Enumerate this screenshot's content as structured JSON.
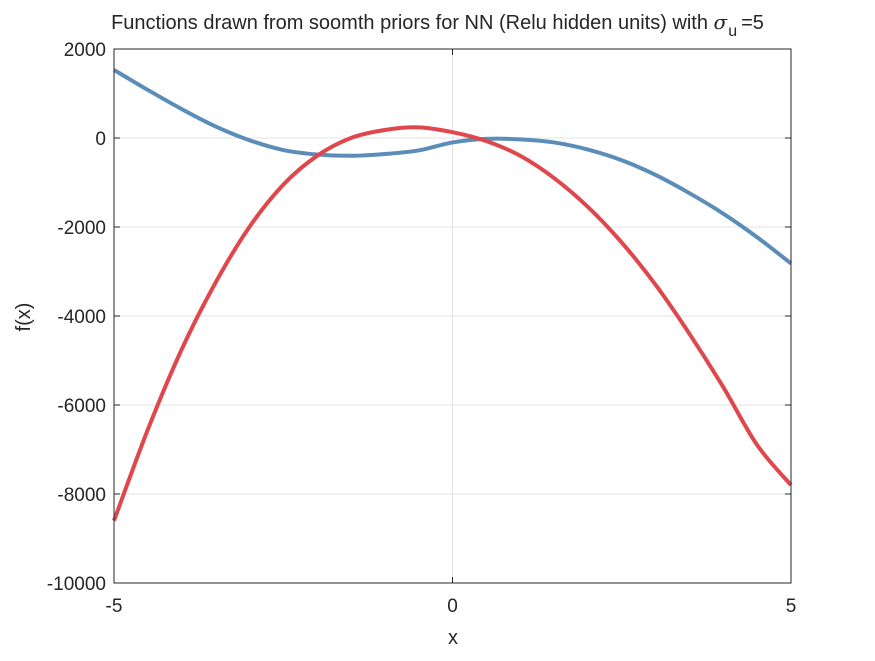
{
  "chart_data": {
    "type": "line",
    "title": {
      "text": "Functions drawn from soomth priors for NN (Relu hidden units) with",
      "symbol": "σ",
      "subscript": "u",
      "suffix": "=5"
    },
    "xlabel": "x",
    "ylabel": "f(x)",
    "xlim": [
      -5,
      5
    ],
    "ylim": [
      -10000,
      2000
    ],
    "xticks": [
      -5,
      0,
      5
    ],
    "xtick_labels": [
      "-5",
      "0",
      "5"
    ],
    "yticks": [
      2000,
      0,
      -2000,
      -4000,
      -6000,
      -8000,
      -10000
    ],
    "ytick_labels": [
      "2000",
      "0",
      "-2000",
      "-4000",
      "-6000",
      "-8000",
      "-10000"
    ],
    "grid": true,
    "box": true,
    "series": [
      {
        "color": "#5b8db8",
        "x": [
          -5,
          -4.5,
          -4,
          -3.5,
          -3,
          -2.5,
          -2,
          -1.5,
          -1,
          -0.5,
          0,
          0.5,
          1,
          1.5,
          2,
          2.5,
          3,
          3.5,
          4,
          4.5,
          5
        ],
        "y": [
          1530,
          1080,
          650,
          260,
          -50,
          -270,
          -370,
          -400,
          -360,
          -280,
          -100,
          -20,
          -30,
          -100,
          -260,
          -500,
          -830,
          -1240,
          -1700,
          -2230,
          -2820
        ]
      },
      {
        "color": "#e0474c",
        "x": [
          -5,
          -4.5,
          -4,
          -3.5,
          -3,
          -2.5,
          -2,
          -1.5,
          -1,
          -0.5,
          0,
          0.5,
          1,
          1.5,
          2,
          2.5,
          3,
          3.5,
          4,
          4.5,
          5
        ],
        "y": [
          -8600,
          -6550,
          -4750,
          -3250,
          -2000,
          -1050,
          -400,
          0,
          180,
          240,
          130,
          -70,
          -400,
          -900,
          -1550,
          -2350,
          -3300,
          -4400,
          -5600,
          -6900,
          -7800
        ]
      }
    ]
  }
}
